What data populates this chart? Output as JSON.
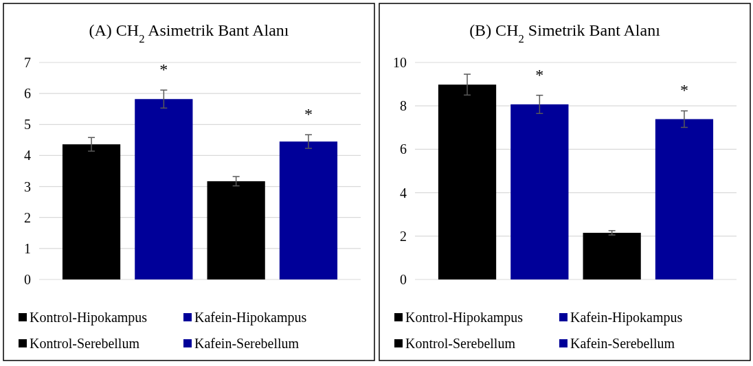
{
  "chart_data": [
    {
      "type": "bar",
      "title": "(A) CH$_{2}$ Asimetrik Bant Alanı",
      "categories": [
        null
      ],
      "ylim": [
        0,
        7
      ],
      "yticks": [
        0,
        1,
        2,
        3,
        4,
        5,
        6,
        7
      ],
      "grid": "y",
      "legend": "bottom",
      "series": [
        {
          "name": "Kontrol-Hipokampus",
          "color": "#000000",
          "values": [
            4.36
          ],
          "errors": [
            0.22
          ],
          "value_labels": [
            null
          ]
        },
        {
          "name": "Kafein-Hipokampus",
          "color": "#000099",
          "values": [
            5.82
          ],
          "errors": [
            0.29
          ],
          "value_labels": [
            "*"
          ]
        },
        {
          "name": "Kontrol-Serebellum",
          "color": "#000000",
          "values": [
            3.17
          ],
          "errors": [
            0.15
          ],
          "value_labels": [
            null
          ]
        },
        {
          "name": "Kafein-Serebellum",
          "color": "#000099",
          "values": [
            4.45
          ],
          "errors": [
            0.22
          ],
          "value_labels": [
            "*"
          ]
        }
      ]
    },
    {
      "type": "bar",
      "title": "(B) CH$_{2}$ Simetrik Bant Alanı",
      "categories": [
        null
      ],
      "ylim": [
        0,
        10
      ],
      "yticks": [
        0,
        2,
        4,
        6,
        8,
        10
      ],
      "grid": "y",
      "legend": "bottom",
      "series": [
        {
          "name": "Kontrol-Hipokampus",
          "color": "#000000",
          "values": [
            8.98
          ],
          "errors": [
            0.48
          ],
          "value_labels": [
            null
          ]
        },
        {
          "name": "Kafein-Hipokampus",
          "color": "#000099",
          "values": [
            8.07
          ],
          "errors": [
            0.42
          ],
          "value_labels": [
            "*"
          ]
        },
        {
          "name": "Kontrol-Serebellum",
          "color": "#000000",
          "values": [
            2.15
          ],
          "errors": [
            0.1
          ],
          "value_labels": [
            null
          ]
        },
        {
          "name": "Kafein-Serebellum",
          "color": "#000099",
          "values": [
            7.39
          ],
          "errors": [
            0.38
          ],
          "value_labels": [
            "*"
          ]
        }
      ]
    }
  ]
}
